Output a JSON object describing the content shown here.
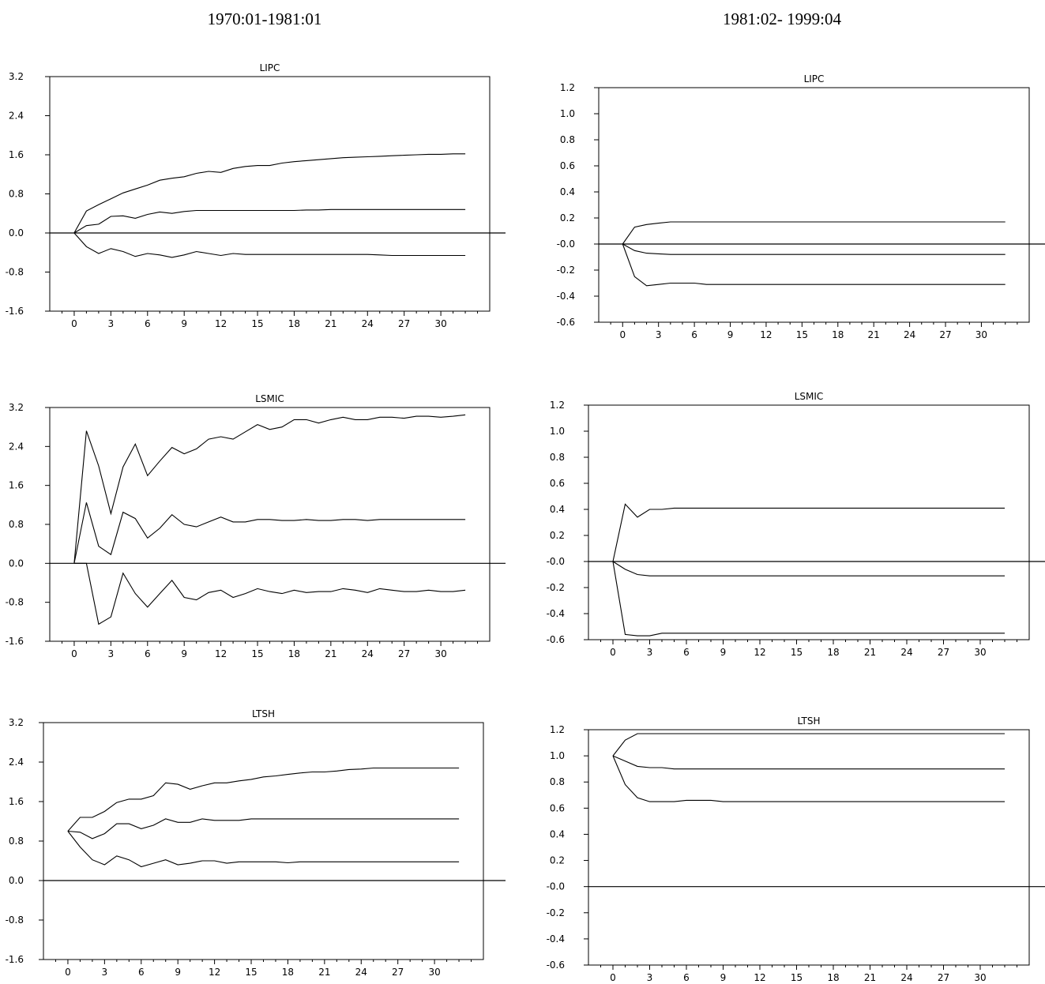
{
  "periods": [
    "1970:01-1981:01",
    "1981:02- 1999:04"
  ],
  "chart_data": [
    {
      "type": "line",
      "period": "1970:01-1981:01",
      "title": "LIPC",
      "xlim": [
        -2,
        34
      ],
      "ylim": [
        -1.6,
        3.2
      ],
      "xticks": [
        0,
        3,
        6,
        9,
        12,
        15,
        18,
        21,
        24,
        27,
        30
      ],
      "yticks": [
        "3.2",
        "2.4",
        "1.6",
        "0.8",
        "0.0",
        "-0.8",
        "-1.6"
      ],
      "x": [
        0,
        1,
        2,
        3,
        4,
        5,
        6,
        7,
        8,
        9,
        10,
        11,
        12,
        13,
        14,
        15,
        16,
        17,
        18,
        19,
        20,
        21,
        22,
        23,
        24,
        25,
        26,
        27,
        28,
        29,
        30,
        31,
        32
      ],
      "series": [
        {
          "values": [
            0,
            0.45,
            0.58,
            0.7,
            0.82,
            0.9,
            0.98,
            1.08,
            1.12,
            1.15,
            1.22,
            1.26,
            1.24,
            1.32,
            1.36,
            1.38,
            1.38,
            1.43,
            1.46,
            1.48,
            1.5,
            1.52,
            1.54,
            1.55,
            1.56,
            1.57,
            1.58,
            1.59,
            1.6,
            1.61,
            1.61,
            1.62,
            1.62
          ]
        },
        {
          "values": [
            0,
            0.15,
            0.18,
            0.34,
            0.35,
            0.3,
            0.38,
            0.43,
            0.4,
            0.44,
            0.46,
            0.46,
            0.46,
            0.46,
            0.46,
            0.46,
            0.46,
            0.46,
            0.46,
            0.47,
            0.47,
            0.48,
            0.48,
            0.48,
            0.48,
            0.48,
            0.48,
            0.48,
            0.48,
            0.48,
            0.48,
            0.48,
            0.48
          ]
        },
        {
          "values": [
            0,
            -0.28,
            -0.42,
            -0.32,
            -0.38,
            -0.48,
            -0.42,
            -0.45,
            -0.5,
            -0.45,
            -0.38,
            -0.42,
            -0.46,
            -0.42,
            -0.44,
            -0.44,
            -0.44,
            -0.44,
            -0.44,
            -0.44,
            -0.44,
            -0.44,
            -0.44,
            -0.44,
            -0.44,
            -0.45,
            -0.46,
            -0.46,
            -0.46,
            -0.46,
            -0.46,
            -0.46,
            -0.46
          ]
        }
      ]
    },
    {
      "type": "line",
      "period": "1981:02- 1999:04",
      "title": "LIPC",
      "xlim": [
        -2,
        34
      ],
      "ylim": [
        -0.6,
        1.2
      ],
      "xticks": [
        0,
        3,
        6,
        9,
        12,
        15,
        18,
        21,
        24,
        27,
        30
      ],
      "yticks": [
        "1.2",
        "1.0",
        "0.8",
        "0.6",
        "0.4",
        "0.2",
        "-0.0",
        "-0.2",
        "-0.4",
        "-0.6"
      ],
      "x": [
        0,
        1,
        2,
        3,
        4,
        5,
        6,
        7,
        8,
        9,
        10,
        11,
        12,
        13,
        14,
        15,
        16,
        17,
        18,
        19,
        20,
        21,
        22,
        23,
        24,
        25,
        26,
        27,
        28,
        29,
        30,
        31,
        32
      ],
      "series": [
        {
          "values": [
            0,
            0.13,
            0.15,
            0.16,
            0.17,
            0.17,
            0.17,
            0.17,
            0.17,
            0.17,
            0.17,
            0.17,
            0.17,
            0.17,
            0.17,
            0.17,
            0.17,
            0.17,
            0.17,
            0.17,
            0.17,
            0.17,
            0.17,
            0.17,
            0.17,
            0.17,
            0.17,
            0.17,
            0.17,
            0.17,
            0.17,
            0.17,
            0.17
          ]
        },
        {
          "values": [
            0,
            -0.05,
            -0.07,
            -0.075,
            -0.08,
            -0.08,
            -0.08,
            -0.08,
            -0.08,
            -0.08,
            -0.08,
            -0.08,
            -0.08,
            -0.08,
            -0.08,
            -0.08,
            -0.08,
            -0.08,
            -0.08,
            -0.08,
            -0.08,
            -0.08,
            -0.08,
            -0.08,
            -0.08,
            -0.08,
            -0.08,
            -0.08,
            -0.08,
            -0.08,
            -0.08,
            -0.08,
            -0.08
          ]
        },
        {
          "values": [
            0,
            -0.25,
            -0.32,
            -0.31,
            -0.3,
            -0.3,
            -0.3,
            -0.31,
            -0.31,
            -0.31,
            -0.31,
            -0.31,
            -0.31,
            -0.31,
            -0.31,
            -0.31,
            -0.31,
            -0.31,
            -0.31,
            -0.31,
            -0.31,
            -0.31,
            -0.31,
            -0.31,
            -0.31,
            -0.31,
            -0.31,
            -0.31,
            -0.31,
            -0.31,
            -0.31,
            -0.31,
            -0.31
          ]
        }
      ]
    },
    {
      "type": "line",
      "period": "1970:01-1981:01",
      "title": "LSMIC",
      "xlim": [
        -2,
        34
      ],
      "ylim": [
        -1.6,
        3.2
      ],
      "xticks": [
        0,
        3,
        6,
        9,
        12,
        15,
        18,
        21,
        24,
        27,
        30
      ],
      "yticks": [
        "3.2",
        "2.4",
        "1.6",
        "0.8",
        "0.0",
        "-0.8",
        "-1.6"
      ],
      "x": [
        0,
        1,
        2,
        3,
        4,
        5,
        6,
        7,
        8,
        9,
        10,
        11,
        12,
        13,
        14,
        15,
        16,
        17,
        18,
        19,
        20,
        21,
        22,
        23,
        24,
        25,
        26,
        27,
        28,
        29,
        30,
        31,
        32
      ],
      "series": [
        {
          "values": [
            0,
            2.72,
            2.0,
            1.02,
            1.98,
            2.45,
            1.8,
            2.1,
            2.38,
            2.25,
            2.35,
            2.55,
            2.6,
            2.55,
            2.7,
            2.85,
            2.75,
            2.8,
            2.95,
            2.95,
            2.88,
            2.95,
            3.0,
            2.95,
            2.95,
            3.0,
            3.0,
            2.98,
            3.02,
            3.02,
            3.0,
            3.02,
            3.05
          ]
        },
        {
          "values": [
            0,
            1.25,
            0.35,
            0.18,
            1.05,
            0.92,
            0.52,
            0.72,
            1.0,
            0.8,
            0.75,
            0.85,
            0.95,
            0.85,
            0.85,
            0.9,
            0.9,
            0.88,
            0.88,
            0.9,
            0.88,
            0.88,
            0.9,
            0.9,
            0.88,
            0.9,
            0.9,
            0.9,
            0.9,
            0.9,
            0.9,
            0.9,
            0.9
          ]
        },
        {
          "values": [
            0,
            0,
            -1.25,
            -1.1,
            -0.2,
            -0.62,
            -0.9,
            -0.62,
            -0.35,
            -0.7,
            -0.75,
            -0.6,
            -0.55,
            -0.7,
            -0.62,
            -0.52,
            -0.58,
            -0.62,
            -0.55,
            -0.6,
            -0.58,
            -0.58,
            -0.52,
            -0.55,
            -0.6,
            -0.52,
            -0.55,
            -0.58,
            -0.58,
            -0.55,
            -0.58,
            -0.58,
            -0.55
          ]
        }
      ]
    },
    {
      "type": "line",
      "period": "1981:02- 1999:04",
      "title": "LSMIC",
      "xlim": [
        -2,
        34
      ],
      "ylim": [
        -0.6,
        1.2
      ],
      "xticks": [
        0,
        3,
        6,
        9,
        12,
        15,
        18,
        21,
        24,
        27,
        30
      ],
      "yticks": [
        "1.2",
        "1.0",
        "0.8",
        "0.6",
        "0.4",
        "0.2",
        "-0.0",
        "-0.2",
        "-0.4",
        "-0.6"
      ],
      "x": [
        0,
        1,
        2,
        3,
        4,
        5,
        6,
        7,
        8,
        9,
        10,
        11,
        12,
        13,
        14,
        15,
        16,
        17,
        18,
        19,
        20,
        21,
        22,
        23,
        24,
        25,
        26,
        27,
        28,
        29,
        30,
        31,
        32
      ],
      "series": [
        {
          "values": [
            0,
            0.44,
            0.34,
            0.4,
            0.4,
            0.41,
            0.41,
            0.41,
            0.41,
            0.41,
            0.41,
            0.41,
            0.41,
            0.41,
            0.41,
            0.41,
            0.41,
            0.41,
            0.41,
            0.41,
            0.41,
            0.41,
            0.41,
            0.41,
            0.41,
            0.41,
            0.41,
            0.41,
            0.41,
            0.41,
            0.41,
            0.41,
            0.41
          ]
        },
        {
          "values": [
            0,
            -0.06,
            -0.1,
            -0.11,
            -0.11,
            -0.11,
            -0.11,
            -0.11,
            -0.11,
            -0.11,
            -0.11,
            -0.11,
            -0.11,
            -0.11,
            -0.11,
            -0.11,
            -0.11,
            -0.11,
            -0.11,
            -0.11,
            -0.11,
            -0.11,
            -0.11,
            -0.11,
            -0.11,
            -0.11,
            -0.11,
            -0.11,
            -0.11,
            -0.11,
            -0.11,
            -0.11,
            -0.11
          ]
        },
        {
          "values": [
            0,
            -0.56,
            -0.57,
            -0.57,
            -0.55,
            -0.55,
            -0.55,
            -0.55,
            -0.55,
            -0.55,
            -0.55,
            -0.55,
            -0.55,
            -0.55,
            -0.55,
            -0.55,
            -0.55,
            -0.55,
            -0.55,
            -0.55,
            -0.55,
            -0.55,
            -0.55,
            -0.55,
            -0.55,
            -0.55,
            -0.55,
            -0.55,
            -0.55,
            -0.55,
            -0.55,
            -0.55,
            -0.55
          ]
        }
      ]
    },
    {
      "type": "line",
      "period": "1970:01-1981:01",
      "title": "LTSH",
      "xlim": [
        -2,
        34
      ],
      "ylim": [
        -1.6,
        3.2
      ],
      "xticks": [
        0,
        3,
        6,
        9,
        12,
        15,
        18,
        21,
        24,
        27,
        30
      ],
      "yticks": [
        "3.2",
        "2.4",
        "1.6",
        "0.8",
        "0.0",
        "-0.8",
        "-1.6"
      ],
      "x": [
        0,
        1,
        2,
        3,
        4,
        5,
        6,
        7,
        8,
        9,
        10,
        11,
        12,
        13,
        14,
        15,
        16,
        17,
        18,
        19,
        20,
        21,
        22,
        23,
        24,
        25,
        26,
        27,
        28,
        29,
        30,
        31,
        32
      ],
      "series": [
        {
          "values": [
            1.0,
            1.28,
            1.28,
            1.4,
            1.58,
            1.65,
            1.65,
            1.72,
            1.98,
            1.95,
            1.85,
            1.92,
            1.98,
            1.98,
            2.02,
            2.05,
            2.1,
            2.12,
            2.15,
            2.18,
            2.2,
            2.2,
            2.22,
            2.25,
            2.26,
            2.28,
            2.28,
            2.28,
            2.28,
            2.28,
            2.28,
            2.28,
            2.28
          ]
        },
        {
          "values": [
            1.0,
            0.98,
            0.85,
            0.95,
            1.15,
            1.15,
            1.05,
            1.12,
            1.25,
            1.18,
            1.18,
            1.25,
            1.22,
            1.22,
            1.22,
            1.25,
            1.25,
            1.25,
            1.25,
            1.25,
            1.25,
            1.25,
            1.25,
            1.25,
            1.25,
            1.25,
            1.25,
            1.25,
            1.25,
            1.25,
            1.25,
            1.25,
            1.25
          ]
        },
        {
          "values": [
            1.0,
            0.68,
            0.42,
            0.32,
            0.5,
            0.42,
            0.28,
            0.35,
            0.42,
            0.32,
            0.35,
            0.4,
            0.4,
            0.35,
            0.38,
            0.38,
            0.38,
            0.38,
            0.36,
            0.38,
            0.38,
            0.38,
            0.38,
            0.38,
            0.38,
            0.38,
            0.38,
            0.38,
            0.38,
            0.38,
            0.38,
            0.38,
            0.38
          ]
        }
      ]
    },
    {
      "type": "line",
      "period": "1981:02- 1999:04",
      "title": "LTSH",
      "xlim": [
        -2,
        34
      ],
      "ylim": [
        -0.6,
        1.2
      ],
      "xticks": [
        0,
        3,
        6,
        9,
        12,
        15,
        18,
        21,
        24,
        27,
        30
      ],
      "yticks": [
        "1.2",
        "1.0",
        "0.8",
        "0.6",
        "0.4",
        "0.2",
        "-0.0",
        "-0.2",
        "-0.4",
        "-0.6"
      ],
      "x": [
        0,
        1,
        2,
        3,
        4,
        5,
        6,
        7,
        8,
        9,
        10,
        11,
        12,
        13,
        14,
        15,
        16,
        17,
        18,
        19,
        20,
        21,
        22,
        23,
        24,
        25,
        26,
        27,
        28,
        29,
        30,
        31,
        32
      ],
      "series": [
        {
          "values": [
            1.0,
            1.12,
            1.17,
            1.17,
            1.17,
            1.17,
            1.17,
            1.17,
            1.17,
            1.17,
            1.17,
            1.17,
            1.17,
            1.17,
            1.17,
            1.17,
            1.17,
            1.17,
            1.17,
            1.17,
            1.17,
            1.17,
            1.17,
            1.17,
            1.17,
            1.17,
            1.17,
            1.17,
            1.17,
            1.17,
            1.17,
            1.17,
            1.17
          ]
        },
        {
          "values": [
            1.0,
            0.96,
            0.92,
            0.91,
            0.91,
            0.9,
            0.9,
            0.9,
            0.9,
            0.9,
            0.9,
            0.9,
            0.9,
            0.9,
            0.9,
            0.9,
            0.9,
            0.9,
            0.9,
            0.9,
            0.9,
            0.9,
            0.9,
            0.9,
            0.9,
            0.9,
            0.9,
            0.9,
            0.9,
            0.9,
            0.9,
            0.9,
            0.9
          ]
        },
        {
          "values": [
            1.0,
            0.78,
            0.68,
            0.65,
            0.65,
            0.65,
            0.66,
            0.66,
            0.66,
            0.65,
            0.65,
            0.65,
            0.65,
            0.65,
            0.65,
            0.65,
            0.65,
            0.65,
            0.65,
            0.65,
            0.65,
            0.65,
            0.65,
            0.65,
            0.65,
            0.65,
            0.65,
            0.65,
            0.65,
            0.65,
            0.65,
            0.65,
            0.65
          ]
        }
      ]
    }
  ]
}
